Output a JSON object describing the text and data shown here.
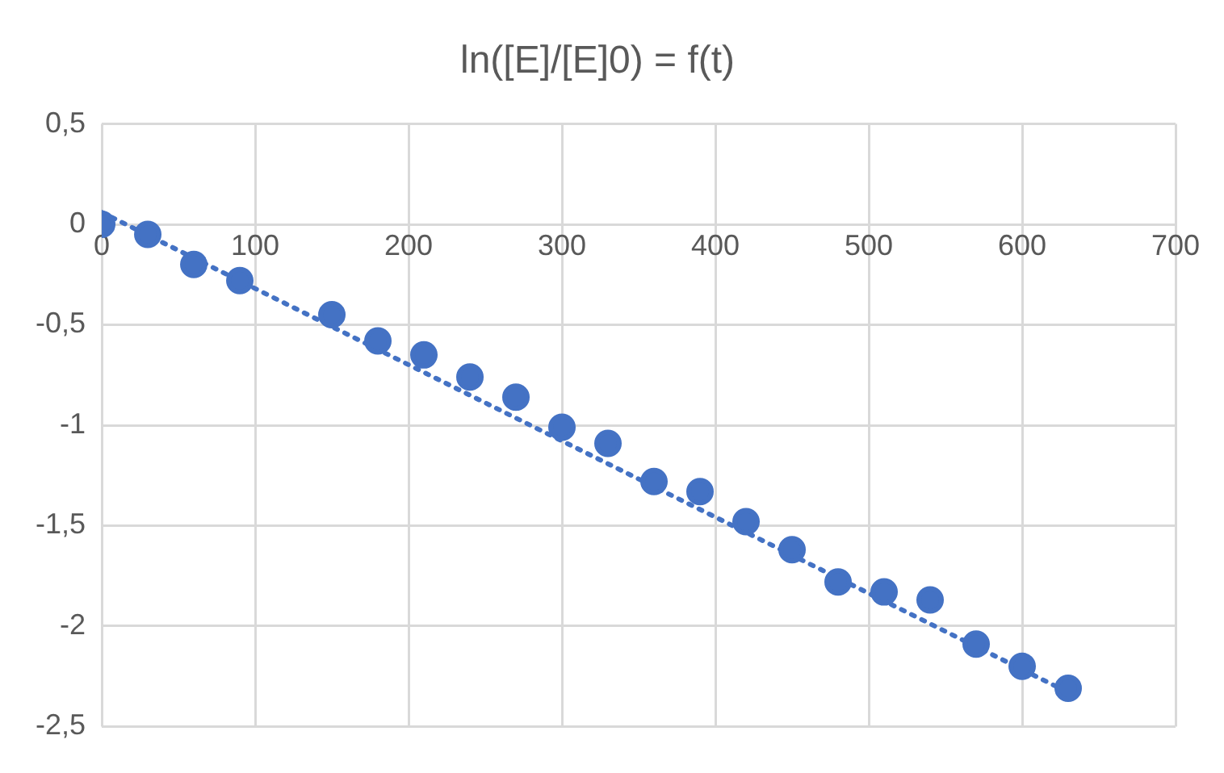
{
  "chart_data": {
    "type": "scatter",
    "title": "ln([E]/[E]0) = f(t)",
    "x": [
      0,
      30,
      60,
      90,
      150,
      180,
      210,
      240,
      270,
      300,
      330,
      360,
      390,
      420,
      450,
      480,
      510,
      540,
      570,
      600,
      630
    ],
    "series": [
      {
        "color": "#4472c4",
        "marker": "circle",
        "values": [
          0,
          -0.05,
          -0.2,
          -0.28,
          -0.45,
          -0.58,
          -0.65,
          -0.76,
          -0.86,
          -1.01,
          -1.09,
          -1.28,
          -1.33,
          -1.48,
          -1.62,
          -1.78,
          -1.83,
          -1.87,
          -2.09,
          -2.2,
          -2.31
        ]
      },
      {
        "type": "line",
        "color": "#4472c4",
        "marker": "none",
        "line_style": "dotted",
        "x": [
          0,
          630
        ],
        "values": [
          0.06,
          -2.33
        ]
      }
    ],
    "xlim": [
      0,
      700
    ],
    "xticks": [
      0,
      100,
      200,
      300,
      400,
      500,
      600,
      700
    ],
    "ylim": [
      -2.5,
      0.5
    ],
    "yticks": [
      {
        "value": -2.5,
        "label": "-2,5"
      },
      -2,
      {
        "value": -1.5,
        "label": "-1,5"
      },
      -1,
      {
        "value": -0.5,
        "label": "-0,5"
      },
      0,
      {
        "value": 0.5,
        "label": "0,5"
      }
    ],
    "grid": true,
    "legend": false
  }
}
